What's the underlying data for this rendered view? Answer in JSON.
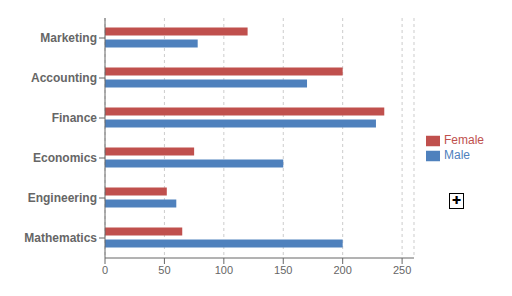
{
  "chart_data": {
    "type": "bar",
    "orientation": "horizontal",
    "categories": [
      "Mathematics",
      "Engineering",
      "Economics",
      "Finance",
      "Accounting",
      "Marketing"
    ],
    "series": [
      {
        "name": "Female",
        "color": "#C0504D",
        "values": [
          65,
          52,
          75,
          235,
          200,
          120
        ]
      },
      {
        "name": "Male",
        "color": "#4F81BD",
        "values": [
          200,
          60,
          150,
          228,
          170,
          78
        ]
      }
    ],
    "xlim": [
      0,
      260
    ],
    "xticks": [
      0,
      50,
      100,
      150,
      200,
      250
    ],
    "grid": true,
    "legend": "right",
    "annotations": [
      "✚"
    ]
  }
}
